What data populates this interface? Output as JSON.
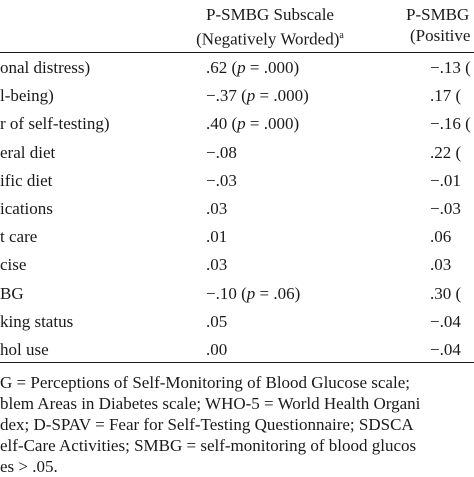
{
  "headers": {
    "col1_line1": "P-SMBG Subscale",
    "col1_line2": "(Negatively Worded)",
    "col1_sup": "a",
    "col2_line1": "P-SMBG",
    "col2_line2": "(Positive"
  },
  "rows": [
    {
      "label": "onal distress)",
      "v1": ".62 (",
      "p1": "p",
      "e1": " = .000)",
      "v2": "−.13 ("
    },
    {
      "label": "l-being)",
      "v1": "−.37 (",
      "p1": "p",
      "e1": " = .000)",
      "v2": ".17 ("
    },
    {
      "label": "r of self-testing)",
      "v1": ".40 (",
      "p1": "p",
      "e1": " = .000)",
      "v2": "−.16 ("
    },
    {
      "label": "eral diet",
      "v1": "−.08",
      "p1": "",
      "e1": "",
      "v2": ".22 ("
    },
    {
      "label": "ific diet",
      "v1": "−.03",
      "p1": "",
      "e1": "",
      "v2": "−.01"
    },
    {
      "label": "ications",
      "v1": ".03",
      "p1": "",
      "e1": "",
      "v2": "−.03"
    },
    {
      "label": "t care",
      "v1": ".01",
      "p1": "",
      "e1": "",
      "v2": ".06"
    },
    {
      "label": "cise",
      "v1": ".03",
      "p1": "",
      "e1": "",
      "v2": ".03"
    },
    {
      "label": "BG",
      "v1": "−.10 (",
      "p1": "p",
      "e1": " = .06)",
      "v2": ".30 ("
    },
    {
      "label": "king status",
      "v1": ".05",
      "p1": "",
      "e1": "",
      "v2": "−.04"
    },
    {
      "label": "hol use",
      "v1": ".00",
      "p1": "",
      "e1": "",
      "v2": "−.04"
    }
  ],
  "notes": [
    "G = Perceptions of Self-Monitoring of Blood Glucose scale;",
    "blem Areas in Diabetes scale; WHO-5 = World Health Organi",
    "dex; D-SPAV = Fear for Self-Testing Questionnaire; SDSCA",
    "elf-Care Activities; SMBG = self-monitoring of blood glucos",
    "es > .05."
  ]
}
